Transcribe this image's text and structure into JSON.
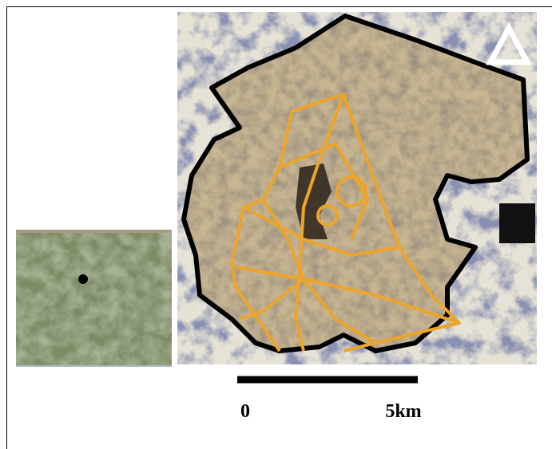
{
  "scale_bar": {
    "start_label": "0",
    "end_label": "5km"
  }
}
